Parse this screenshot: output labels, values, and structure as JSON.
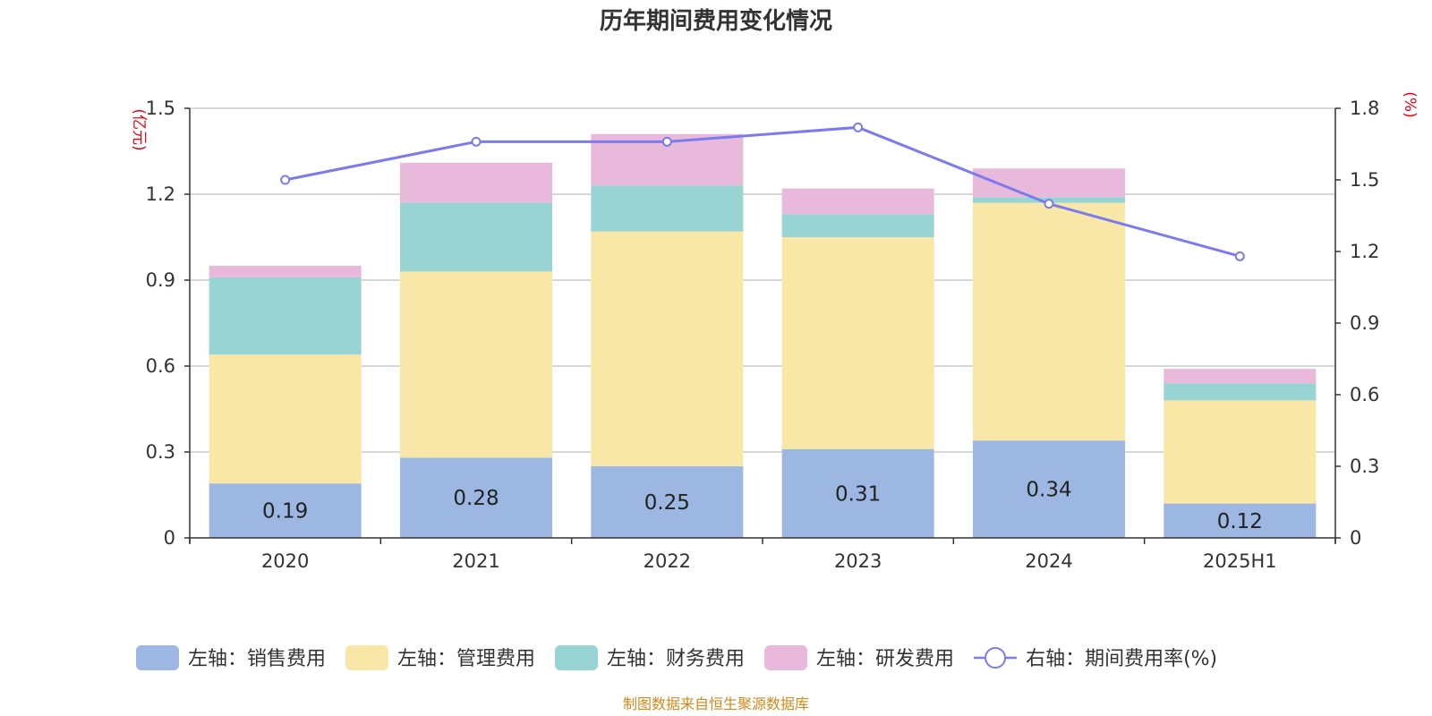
{
  "chart_data": {
    "type": "bar",
    "title": "历年期间费用变化情况",
    "categories": [
      "2020",
      "2021",
      "2022",
      "2023",
      "2024",
      "2025H1"
    ],
    "left_axis": {
      "unit": "(亿元)",
      "ylim": [
        0,
        1.5
      ],
      "ticks": [
        "0",
        "0.3",
        "0.6",
        "0.9",
        "1.2",
        "1.5"
      ]
    },
    "right_axis": {
      "unit": "(%)",
      "ylim": [
        0,
        1.8
      ],
      "ticks": [
        "0",
        "0.3",
        "0.6",
        "0.9",
        "1.2",
        "1.5",
        "1.8"
      ]
    },
    "series": [
      {
        "name": "左轴：销售费用",
        "type": "bar",
        "axis": "left",
        "color": "#9cb8e2",
        "values": [
          0.19,
          0.28,
          0.25,
          0.31,
          0.34,
          0.12
        ],
        "labels": [
          "0.19",
          "0.28",
          "0.25",
          "0.31",
          "0.34",
          "0.12"
        ]
      },
      {
        "name": "左轴：管理费用",
        "type": "bar",
        "axis": "left",
        "color": "#f8e7a6",
        "values": [
          0.45,
          0.65,
          0.82,
          0.74,
          0.83,
          0.36
        ]
      },
      {
        "name": "左轴：财务费用",
        "type": "bar",
        "axis": "left",
        "color": "#98d4d4",
        "values": [
          0.27,
          0.24,
          0.16,
          0.08,
          0.02,
          0.06
        ]
      },
      {
        "name": "左轴：研发费用",
        "type": "bar",
        "axis": "left",
        "color": "#e8b9da",
        "values": [
          0.04,
          0.14,
          0.18,
          0.09,
          0.1,
          0.05
        ]
      },
      {
        "name": "右轴：期间费用率(%)",
        "type": "line",
        "axis": "right",
        "color": "#7b7bee",
        "values": [
          1.5,
          1.66,
          1.66,
          1.72,
          1.4,
          1.18
        ]
      }
    ],
    "legend_position": "bottom",
    "source": "制图数据来自恒生聚源数据库"
  }
}
